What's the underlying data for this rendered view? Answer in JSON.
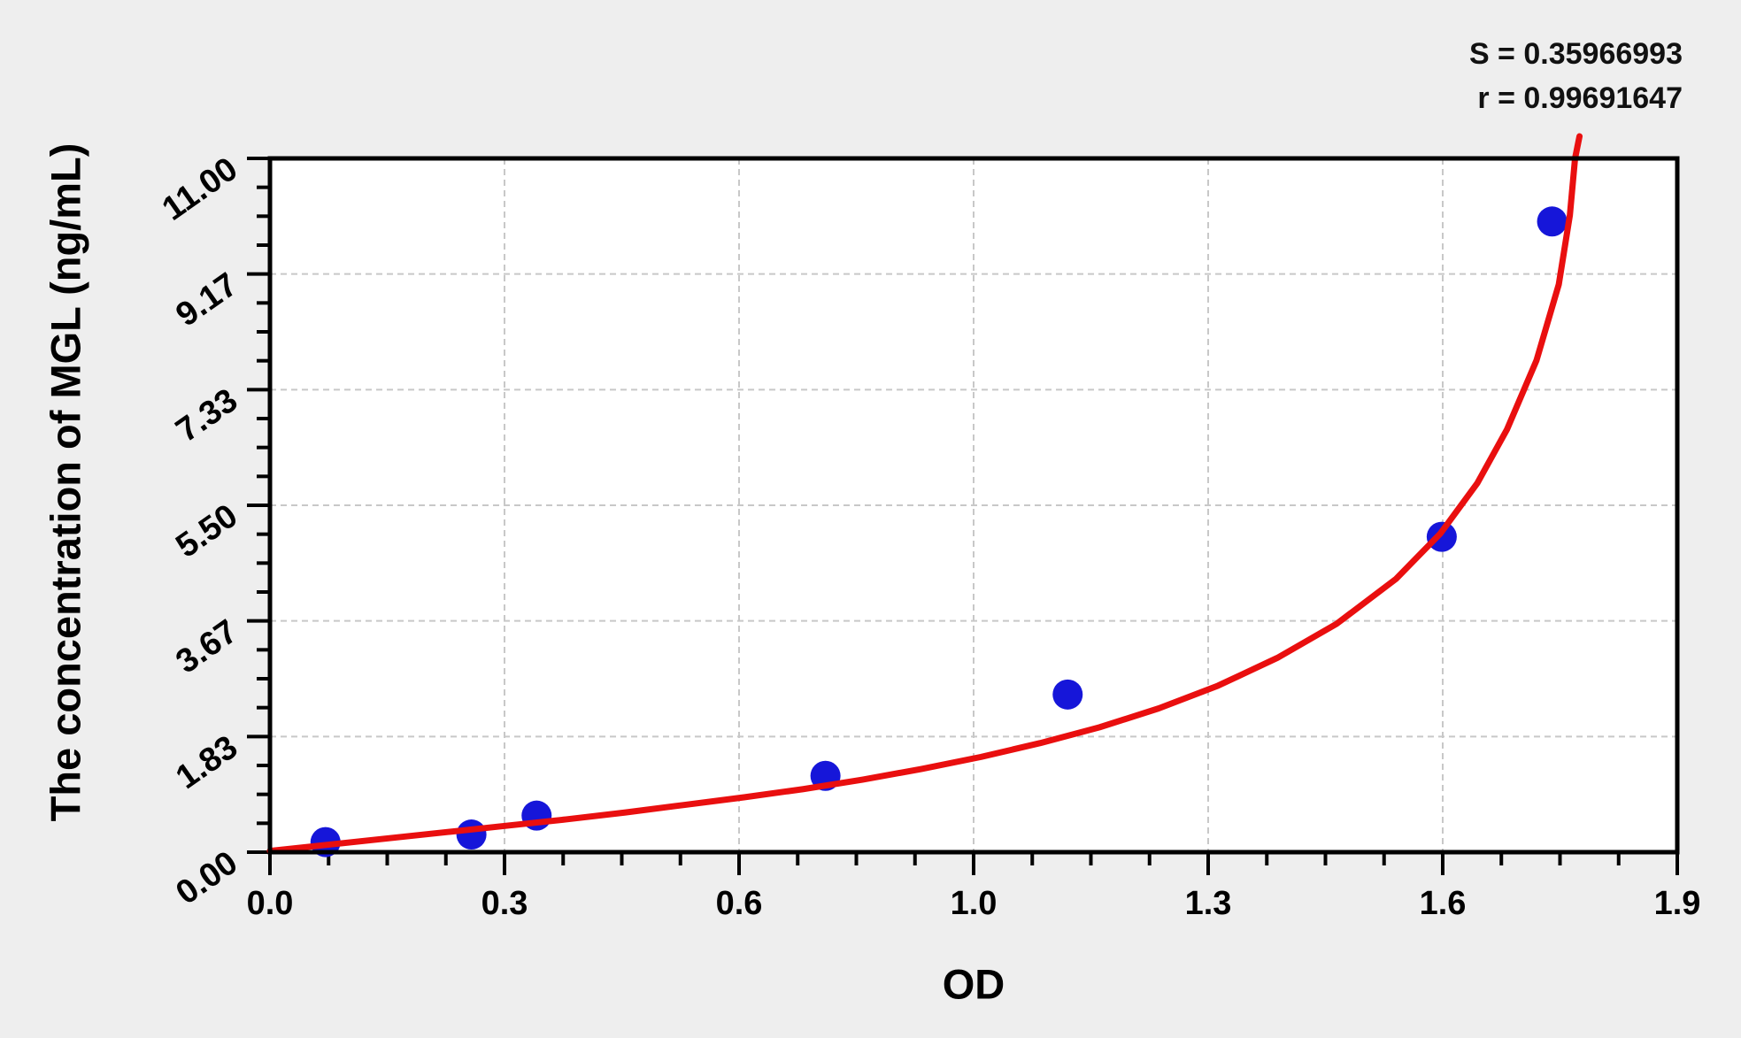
{
  "chart_data": {
    "type": "scatter",
    "title": "",
    "xlabel": "OD",
    "ylabel": "The concentration of MGL (ng/mL)",
    "annotations": {
      "line1": "S = 0.35966993",
      "line2": "r = 0.99691647"
    },
    "stats": {
      "S": "0.35966993",
      "r": "0.99691647"
    },
    "xlim": [
      0,
      1.9
    ],
    "ylim": [
      0,
      11.0
    ],
    "grid": true,
    "legend_position": "none",
    "x_ticks": {
      "values": [
        0,
        0.31667,
        0.63333,
        0.95,
        1.26667,
        1.58333,
        1.9
      ],
      "labels": [
        "0.0",
        "0.3",
        "0.6",
        "1.0",
        "1.3",
        "1.6",
        "1.9"
      ],
      "minor_per_major": 3
    },
    "y_ticks": {
      "values": [
        0,
        1.83333,
        3.66667,
        5.5,
        7.33333,
        9.16667,
        11.0
      ],
      "labels": [
        "0.00",
        "1.83",
        "3.67",
        "5.50",
        "7.33",
        "9.17",
        "11.00"
      ],
      "minor_per_major": 3
    },
    "series": [
      {
        "name": "standard-points",
        "type": "scatter",
        "color": "#1616d9",
        "points": [
          [
            0.075,
            0.16
          ],
          [
            0.272,
            0.28
          ],
          [
            0.36,
            0.58
          ],
          [
            0.75,
            1.21
          ],
          [
            1.077,
            2.5
          ],
          [
            1.582,
            5.0
          ],
          [
            1.731,
            10.0
          ]
        ]
      },
      {
        "name": "fitted-curve",
        "type": "line",
        "color": "#e90f0f",
        "points": [
          [
            0.0,
            0.02
          ],
          [
            0.08,
            0.12
          ],
          [
            0.16,
            0.22
          ],
          [
            0.24,
            0.32
          ],
          [
            0.32,
            0.42
          ],
          [
            0.4,
            0.52
          ],
          [
            0.48,
            0.63
          ],
          [
            0.56,
            0.75
          ],
          [
            0.64,
            0.87
          ],
          [
            0.72,
            1.0
          ],
          [
            0.8,
            1.15
          ],
          [
            0.88,
            1.32
          ],
          [
            0.96,
            1.51
          ],
          [
            1.04,
            1.73
          ],
          [
            1.12,
            1.98
          ],
          [
            1.2,
            2.28
          ],
          [
            1.28,
            2.64
          ],
          [
            1.36,
            3.08
          ],
          [
            1.44,
            3.62
          ],
          [
            1.52,
            4.33
          ],
          [
            1.58,
            5.05
          ],
          [
            1.63,
            5.85
          ],
          [
            1.67,
            6.7
          ],
          [
            1.71,
            7.8
          ],
          [
            1.74,
            9.0
          ],
          [
            1.755,
            10.1
          ],
          [
            1.762,
            11.0
          ],
          [
            1.768,
            11.35
          ]
        ]
      }
    ]
  },
  "colors": {
    "background": "#eeeeee",
    "plot_background": "#ffffff",
    "axis": "#000000",
    "grid": "#c8c8c8",
    "tick_label": "#000000",
    "curve": "#e90f0f",
    "points": "#1616d9"
  }
}
